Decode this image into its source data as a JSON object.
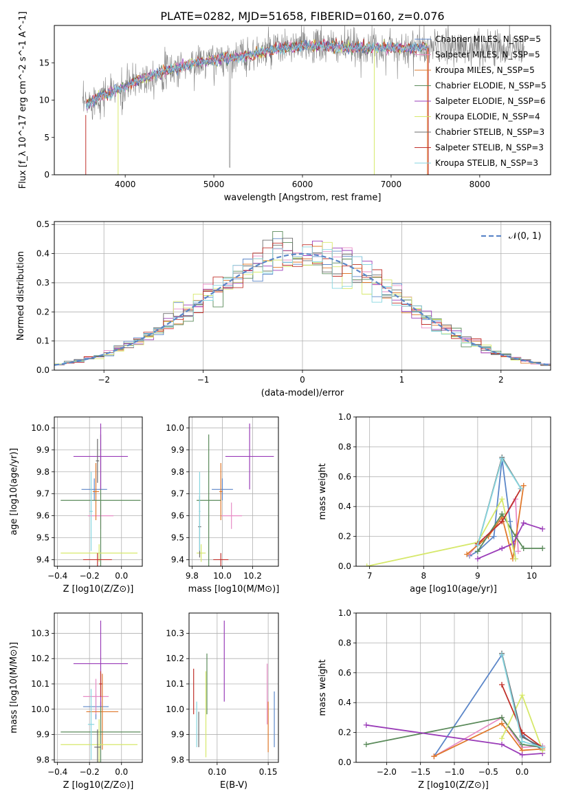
{
  "figure_title": "PLATE=0282, MJD=51658, FIBERID=0160, z=0.076",
  "colors": {
    "Chabrier MILES": "#5b86c8",
    "Salpeter MILES": "#e78bc5",
    "Kroupa MILES": "#e0782b",
    "Chabrier ELODIE": "#5a8a5a",
    "Salpeter ELODIE": "#9a3cb8",
    "Kroupa ELODIE": "#d6e86a",
    "Chabrier STELIB": "#6b6b6b",
    "Salpeter STELIB": "#c0302a",
    "Kroupa STELIB": "#86d6e0"
  },
  "chart_data": [
    {
      "type": "line",
      "id": "spectrum",
      "xlabel": "wavelength [Angstrom, rest frame]",
      "ylabel": "Flux [f_λ 10^-17 erg cm^-2 s^-1 A^-1]",
      "xlim": [
        3200,
        8800
      ],
      "ylim": [
        0,
        20
      ],
      "xticks": [
        "4000",
        "5000",
        "6000",
        "7000",
        "8000"
      ],
      "yticks": [
        "0",
        "5",
        "10",
        "15"
      ],
      "legend": [
        {
          "model": "Chabrier MILES",
          "label": "Chabrier MILES, N_SSP=5"
        },
        {
          "model": "Salpeter MILES",
          "label": "Salpeter MILES, N_SSP=5"
        },
        {
          "model": "Kroupa MILES",
          "label": "Kroupa MILES, N_SSP=5"
        },
        {
          "model": "Chabrier ELODIE",
          "label": "Chabrier ELODIE, N_SSP=5"
        },
        {
          "model": "Salpeter ELODIE",
          "label": "Salpeter ELODIE, N_SSP=6"
        },
        {
          "model": "Kroupa ELODIE",
          "label": "Kroupa ELODIE, N_SSP=4"
        },
        {
          "model": "Chabrier STELIB",
          "label": "Chabrier STELIB, N_SSP=3"
        },
        {
          "model": "Salpeter STELIB",
          "label": "Salpeter STELIB, N_SSP=3"
        },
        {
          "model": "Kroupa STELIB",
          "label": "Kroupa STELIB, N_SSP=3"
        }
      ],
      "legend_position": "right",
      "continuum_x": [
        3500,
        3700,
        3950,
        4200,
        4500,
        4800,
        5100,
        5400,
        5700,
        6000,
        6300,
        6600,
        6900,
        7200,
        7400
      ],
      "continuum_y": [
        9,
        10.5,
        11.5,
        13,
        14,
        15,
        15.5,
        16,
        16.8,
        17.3,
        17.2,
        17,
        17,
        17,
        17
      ]
    },
    {
      "type": "line",
      "id": "residuals",
      "xlabel": "(data-model)/error",
      "ylabel": "Normed distribution",
      "xlim": [
        -2.5,
        2.5
      ],
      "ylim": [
        0,
        0.51
      ],
      "xticks": [
        "−2",
        "−1",
        "0",
        "1",
        "2"
      ],
      "yticks": [
        "0.0",
        "0.1",
        "0.2",
        "0.3",
        "0.4",
        "0.5"
      ],
      "legend": "𝒩(0, 1)",
      "legend_position": "top-right",
      "grid": true,
      "normal_curve": {
        "mu": 0,
        "sigma": 1,
        "color": "#5b86c8",
        "style": "dashed"
      },
      "bin_width": 0.1
    },
    {
      "type": "scatter",
      "id": "age-vs-Z",
      "xlabel": "Z [log10(Z/Z⊙)]",
      "ylabel": "age  [log10(age/yr)]",
      "xlim": [
        -0.42,
        0.13
      ],
      "ylim": [
        9.37,
        10.05
      ],
      "xticks": [
        "−0.4",
        "−0.2",
        "0.0"
      ],
      "yticks": [
        "9.4",
        "9.5",
        "9.6",
        "9.7",
        "9.8",
        "9.9",
        "10.0"
      ],
      "grid": true,
      "points": [
        {
          "model": "Chabrier MILES",
          "x": -0.17,
          "xerr": 0.08,
          "y": 9.72,
          "yerr": 0.05
        },
        {
          "model": "Salpeter MILES",
          "x": -0.13,
          "xerr": 0.08,
          "y": 9.6,
          "yerr": 0.06
        },
        {
          "model": "Kroupa MILES",
          "x": -0.16,
          "xerr": 0.02,
          "y": 9.71,
          "yerr": 0.13
        },
        {
          "model": "Chabrier ELODIE",
          "x": -0.13,
          "xerr": 0.25,
          "y": 9.67,
          "yerr": 0.3
        },
        {
          "model": "Salpeter ELODIE",
          "x": -0.13,
          "xerr": 0.17,
          "y": 9.87,
          "yerr": 0.15
        },
        {
          "model": "Kroupa ELODIE",
          "x": -0.14,
          "xerr": 0.24,
          "y": 9.43,
          "yerr": 0.04
        },
        {
          "model": "Chabrier STELIB",
          "x": -0.15,
          "xerr": 0.01,
          "y": 9.85,
          "yerr": 0.1
        },
        {
          "model": "Salpeter STELIB",
          "x": -0.15,
          "xerr": 0.09,
          "y": 9.4,
          "yerr": 0.03
        },
        {
          "model": "Kroupa STELIB",
          "x": -0.19,
          "xerr": 0.01,
          "y": 9.62,
          "yerr": 0.18
        }
      ]
    },
    {
      "type": "scatter",
      "id": "age-vs-mass",
      "xlabel": "mass [log10(M/M⊙)]",
      "ylabel": "",
      "xlim": [
        9.78,
        10.37
      ],
      "ylim": [
        9.37,
        10.05
      ],
      "xticks": [
        "9.8",
        "10.0",
        "10.2"
      ],
      "yticks": [
        "9.4",
        "9.5",
        "9.6",
        "9.7",
        "9.8",
        "9.9",
        "10.0"
      ],
      "grid": true,
      "points": [
        {
          "model": "Chabrier MILES",
          "x": 10.0,
          "xerr": 0.07,
          "y": 9.72,
          "yerr": 0.05
        },
        {
          "model": "Salpeter MILES",
          "x": 10.06,
          "xerr": 0.07,
          "y": 9.6,
          "yerr": 0.06
        },
        {
          "model": "Kroupa MILES",
          "x": 9.99,
          "xerr": 0.01,
          "y": 9.71,
          "yerr": 0.13
        },
        {
          "model": "Chabrier ELODIE",
          "x": 9.91,
          "xerr": 0.08,
          "y": 9.67,
          "yerr": 0.3
        },
        {
          "model": "Salpeter ELODIE",
          "x": 10.18,
          "xerr": 0.16,
          "y": 9.87,
          "yerr": 0.15
        },
        {
          "model": "Kroupa ELODIE",
          "x": 9.86,
          "xerr": 0.03,
          "y": 9.43,
          "yerr": 0.04
        },
        {
          "model": "Chabrier STELIB",
          "x": 9.85,
          "xerr": 0.01,
          "y": 9.55,
          "yerr": 0.14
        },
        {
          "model": "Salpeter STELIB",
          "x": 9.99,
          "xerr": 0.05,
          "y": 9.4,
          "yerr": 0.03
        },
        {
          "model": "Kroupa STELIB",
          "x": 9.85,
          "xerr": 0.005,
          "y": 9.62,
          "yerr": 0.18
        }
      ]
    },
    {
      "type": "line",
      "id": "weight-vs-age",
      "xlabel": "age  [log10(age/yr)]",
      "ylabel": "mass weight",
      "xlim": [
        6.75,
        10.35
      ],
      "ylim": [
        0,
        1
      ],
      "xticks": [
        "7",
        "8",
        "9",
        "10"
      ],
      "yticks": [
        "0.0",
        "0.2",
        "0.4",
        "0.6",
        "0.8",
        "1.0"
      ],
      "grid": true,
      "series": [
        {
          "model": "Chabrier MILES",
          "x": [
            8.85,
            9.0,
            9.3,
            9.45,
            9.6,
            9.7
          ],
          "y": [
            0.07,
            0.1,
            0.2,
            0.72,
            0.3,
            0.05
          ]
        },
        {
          "model": "Salpeter MILES",
          "x": [
            8.85,
            9.0,
            9.45,
            9.7,
            9.75
          ],
          "y": [
            0.08,
            0.15,
            0.3,
            0.45,
            0.1
          ]
        },
        {
          "model": "Kroupa MILES",
          "x": [
            8.8,
            9.2,
            9.45,
            9.65,
            9.85
          ],
          "y": [
            0.08,
            0.2,
            0.33,
            0.05,
            0.54
          ]
        },
        {
          "model": "Chabrier ELODIE",
          "x": [
            9.0,
            9.45,
            9.7,
            9.85,
            10.2
          ],
          "y": [
            0.1,
            0.35,
            0.2,
            0.12,
            0.12
          ]
        },
        {
          "model": "Salpeter ELODIE",
          "x": [
            9.0,
            9.45,
            9.65,
            9.85,
            10.2
          ],
          "y": [
            0.05,
            0.12,
            0.15,
            0.29,
            0.25
          ]
        },
        {
          "model": "Kroupa ELODIE",
          "x": [
            6.95,
            9.0,
            9.45,
            9.7
          ],
          "y": [
            0.0,
            0.16,
            0.45,
            0.05
          ]
        },
        {
          "model": "Chabrier STELIB",
          "x": [
            9.0,
            9.45,
            9.8
          ],
          "y": [
            0.14,
            0.73,
            0.52
          ]
        },
        {
          "model": "Salpeter STELIB",
          "x": [
            9.0,
            9.45,
            9.8
          ],
          "y": [
            0.15,
            0.3,
            0.52
          ]
        },
        {
          "model": "Kroupa STELIB",
          "x": [
            9.0,
            9.45,
            9.8
          ],
          "y": [
            0.14,
            0.72,
            0.52
          ]
        }
      ]
    },
    {
      "type": "scatter",
      "id": "mass-vs-Z",
      "xlabel": "Z [log10(Z/Z⊙)]",
      "ylabel": "mass [log10(M/M⊙)]",
      "xlim": [
        -0.42,
        0.13
      ],
      "ylim": [
        9.79,
        10.38
      ],
      "xticks": [
        "−0.4",
        "−0.2",
        "0.0"
      ],
      "yticks": [
        "9.8",
        "9.9",
        "10.0",
        "10.1",
        "10.2",
        "10.3"
      ],
      "grid": true,
      "points": [
        {
          "model": "Chabrier MILES",
          "x": -0.16,
          "xerr": 0.08,
          "y": 10.01,
          "yerr": 0.05
        },
        {
          "model": "Salpeter MILES",
          "x": -0.16,
          "xerr": 0.08,
          "y": 10.05,
          "yerr": 0.07
        },
        {
          "model": "Kroupa MILES",
          "x": -0.12,
          "xerr": 0.1,
          "y": 9.99,
          "yerr": 0.15
        },
        {
          "model": "Chabrier ELODIE",
          "x": -0.13,
          "xerr": 0.25,
          "y": 9.91,
          "yerr": 0.12
        },
        {
          "model": "Salpeter ELODIE",
          "x": -0.13,
          "xerr": 0.17,
          "y": 10.18,
          "yerr": 0.17
        },
        {
          "model": "Kroupa ELODIE",
          "x": -0.14,
          "xerr": 0.24,
          "y": 9.86,
          "yerr": 0.1
        },
        {
          "model": "Chabrier STELIB",
          "x": -0.15,
          "xerr": 0.02,
          "y": 9.85,
          "yerr": 0.07
        },
        {
          "model": "Salpeter STELIB",
          "x": -0.13,
          "xerr": 0.01,
          "y": 10.1,
          "yerr": 0.05
        },
        {
          "model": "Kroupa STELIB",
          "x": -0.19,
          "xerr": 0.02,
          "y": 9.94,
          "yerr": 0.14
        }
      ]
    },
    {
      "type": "scatter",
      "id": "mass-vs-ebv",
      "xlabel": "E(B-V)",
      "ylabel": "",
      "xlim": [
        0.0725,
        0.16
      ],
      "ylim": [
        9.79,
        10.38
      ],
      "xticks": [
        "0.10",
        "0.15"
      ],
      "yticks": [
        "9.8",
        "9.9",
        "10.0",
        "10.1",
        "10.2",
        "10.3"
      ],
      "grid": true,
      "points": [
        {
          "model": "Chabrier MILES",
          "x": 0.156,
          "y": 9.96,
          "yerr": 0.11
        },
        {
          "model": "Salpeter MILES",
          "x": 0.149,
          "y": 10.06,
          "yerr": 0.12
        },
        {
          "model": "Kroupa MILES",
          "x": 0.15,
          "y": 9.93,
          "yerr": 0.1
        },
        {
          "model": "Chabrier ELODIE",
          "x": 0.09,
          "y": 10.1,
          "yerr": 0.12
        },
        {
          "model": "Salpeter ELODIE",
          "x": 0.107,
          "y": 10.19,
          "yerr": 0.16
        },
        {
          "model": "Kroupa ELODIE",
          "x": 0.089,
          "y": 9.98,
          "yerr": 0.17
        },
        {
          "model": "Chabrier STELIB",
          "x": 0.082,
          "y": 9.92,
          "yerr": 0.07
        },
        {
          "model": "Salpeter STELIB",
          "x": 0.077,
          "y": 10.07,
          "yerr": 0.09
        },
        {
          "model": "Kroupa STELIB",
          "x": 0.08,
          "y": 9.94,
          "yerr": 0.09
        }
      ]
    },
    {
      "type": "line",
      "id": "weight-vs-Z",
      "xlabel": "Z [log10(Z/Z⊙)]",
      "ylabel": "mass weight",
      "xlim": [
        -2.45,
        0.42
      ],
      "ylim": [
        0,
        1
      ],
      "xticks": [
        "−2.0",
        "−1.5",
        "−1.0",
        "−0.5",
        "0.0"
      ],
      "yticks": [
        "0.0",
        "0.2",
        "0.4",
        "0.6",
        "0.8",
        "1.0"
      ],
      "grid": true,
      "series": [
        {
          "model": "Chabrier MILES",
          "x": [
            -1.3,
            -0.3,
            0.0,
            0.3
          ],
          "y": [
            0.04,
            0.72,
            0.18,
            0.08
          ]
        },
        {
          "model": "Salpeter MILES",
          "x": [
            -1.3,
            -0.3,
            0.0,
            0.3
          ],
          "y": [
            0.04,
            0.3,
            0.1,
            0.11
          ]
        },
        {
          "model": "Kroupa MILES",
          "x": [
            -1.3,
            -0.3,
            0.0,
            0.3
          ],
          "y": [
            0.04,
            0.26,
            0.08,
            0.09
          ]
        },
        {
          "model": "Chabrier ELODIE",
          "x": [
            -2.3,
            -0.3,
            0.0,
            0.3
          ],
          "y": [
            0.12,
            0.3,
            0.12,
            0.1
          ]
        },
        {
          "model": "Salpeter ELODIE",
          "x": [
            -2.3,
            -0.3,
            0.0,
            0.3
          ],
          "y": [
            0.25,
            0.12,
            0.05,
            0.06
          ]
        },
        {
          "model": "Kroupa ELODIE",
          "x": [
            -0.3,
            0.0,
            0.3
          ],
          "y": [
            0.16,
            0.45,
            0.08
          ]
        },
        {
          "model": "Chabrier STELIB",
          "x": [
            -0.3,
            0.0,
            0.3
          ],
          "y": [
            0.73,
            0.17,
            0.1
          ]
        },
        {
          "model": "Salpeter STELIB",
          "x": [
            -0.3,
            0.0,
            0.3
          ],
          "y": [
            0.52,
            0.2,
            0.1
          ]
        },
        {
          "model": "Kroupa STELIB",
          "x": [
            -0.3,
            0.0,
            0.3
          ],
          "y": [
            0.72,
            0.14,
            0.1
          ]
        }
      ]
    }
  ]
}
